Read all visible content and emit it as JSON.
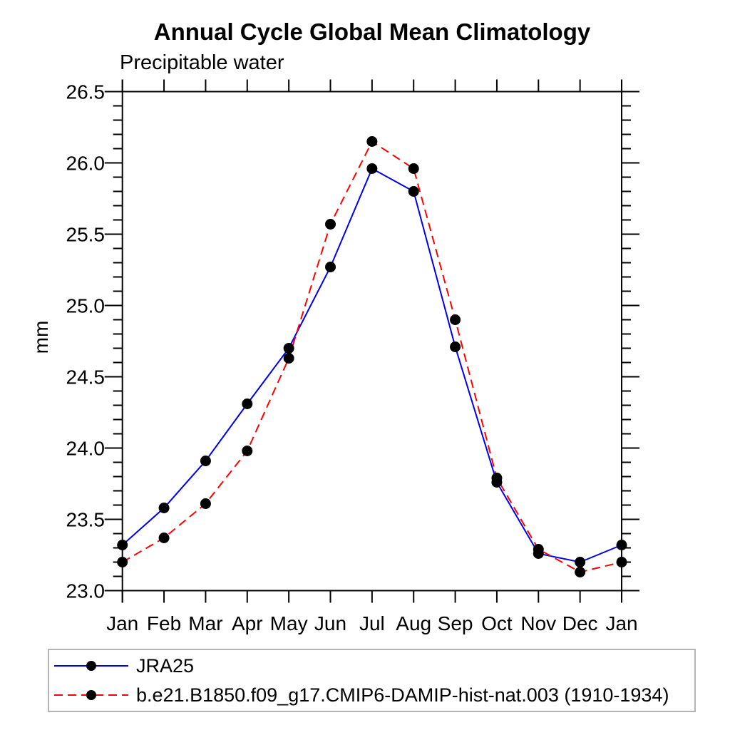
{
  "chart_data": {
    "type": "line",
    "title": "Annual Cycle Global Mean Climatology",
    "subtitle": "Precipitable water",
    "ylabel": "mm",
    "categories": [
      "Jan",
      "Feb",
      "Mar",
      "Apr",
      "May",
      "Jun",
      "Jul",
      "Aug",
      "Sep",
      "Oct",
      "Nov",
      "Dec",
      "Jan"
    ],
    "ylim": [
      23.0,
      26.5
    ],
    "y_major_step": 0.5,
    "y_minor_step": 0.1,
    "y_tick_labels": [
      "23.0",
      "23.5",
      "24.0",
      "24.5",
      "25.0",
      "25.5",
      "26.0",
      "26.5"
    ],
    "grid": "off",
    "legend_position": "bottom-left-box",
    "axis_color": "#000000",
    "series": [
      {
        "name": "JRA25",
        "color": "#0000ee",
        "line_style": "solid",
        "dash": "",
        "marker": "filled-circle",
        "marker_color": "#000000",
        "values": [
          23.32,
          23.58,
          23.91,
          24.31,
          24.7,
          25.27,
          25.96,
          25.8,
          24.71,
          23.76,
          23.26,
          23.2,
          23.32
        ]
      },
      {
        "name": "b.e21.B1850.f09_g17.CMIP6-DAMIP-hist-nat.003 (1910-1934)",
        "color": "#ff0000",
        "line_style": "dashed",
        "dash": "12 7",
        "marker": "filled-circle",
        "marker_color": "#000000",
        "values": [
          23.2,
          23.37,
          23.61,
          23.98,
          24.63,
          25.57,
          26.15,
          25.96,
          24.9,
          23.79,
          23.29,
          23.13,
          23.2
        ]
      }
    ]
  }
}
